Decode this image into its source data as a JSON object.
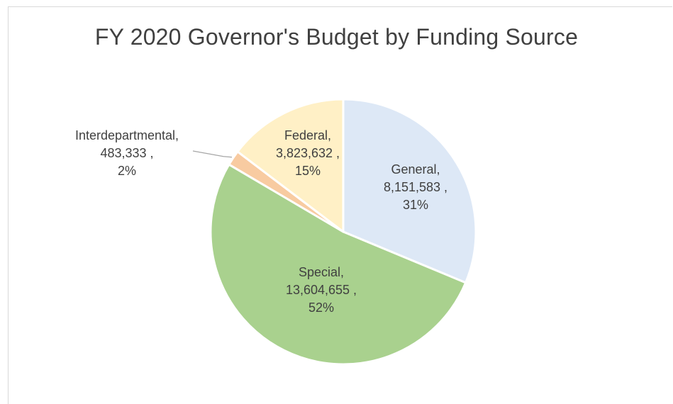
{
  "chart_data": {
    "type": "pie",
    "title": "FY 2020 Governor's Budget by Funding Source",
    "slices": [
      {
        "name": "General",
        "value": 8151583,
        "value_label": "8,151,583 ,",
        "percent_label": "31%",
        "color": "#dde8f6"
      },
      {
        "name": "Special",
        "value": 13604655,
        "value_label": "13,604,655 ,",
        "percent_label": "52%",
        "color": "#a9d18e"
      },
      {
        "name": "Interdepartmental",
        "value": 483333,
        "value_label": "483,333 ,",
        "percent_label": "2%",
        "color": "#f8cba1"
      },
      {
        "name": "Federal",
        "value": 3823632,
        "value_label": "3,823,632 ,",
        "percent_label": "15%",
        "color": "#fff0c6"
      }
    ],
    "start_angle_deg": 0,
    "direction": "clockwise",
    "legend": "none"
  }
}
